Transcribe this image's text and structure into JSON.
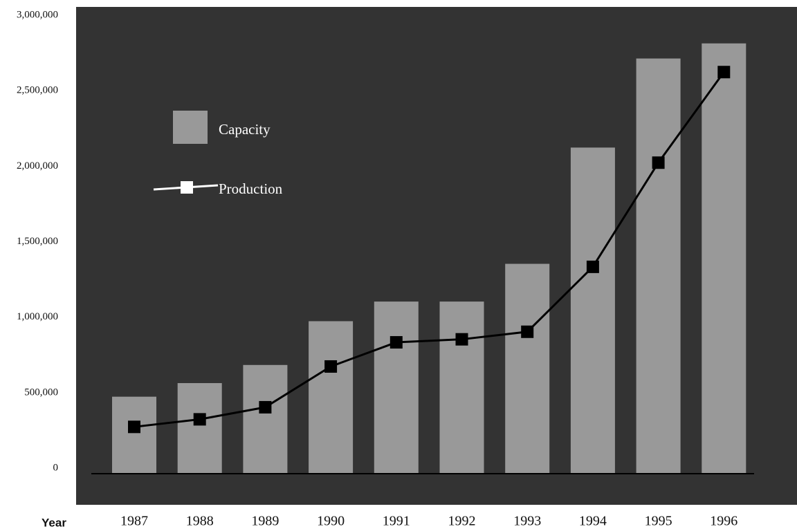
{
  "chart_data": {
    "type": "bar_line",
    "x_axis_label": "Year",
    "categories": [
      "1987",
      "1988",
      "1989",
      "1990",
      "1991",
      "1992",
      "1993",
      "1994",
      "1995",
      "1996"
    ],
    "series": [
      {
        "name": "Capacity",
        "type": "bar",
        "color": "#999999",
        "values": [
          510000,
          600000,
          720000,
          1010000,
          1140000,
          1140000,
          1390000,
          2160000,
          2750000,
          2850000
        ]
      },
      {
        "name": "Production",
        "type": "line",
        "color": "#000000",
        "values": [
          310000,
          360000,
          440000,
          710000,
          870000,
          890000,
          940000,
          1370000,
          2060000,
          2660000
        ]
      }
    ],
    "ylim": [
      0,
      3000000
    ],
    "yticks": [
      0,
      {
        "value": 500000,
        "label": "500,000"
      },
      {
        "value": 1000000,
        "label": "1,000,000"
      },
      {
        "value": 1500000,
        "label": "1,500,000"
      },
      {
        "value": 2000000,
        "label": "2,000,000"
      },
      {
        "value": 2500000,
        "label": "2,500,000"
      },
      {
        "value": 3000000,
        "label": "3,000,000"
      }
    ]
  }
}
